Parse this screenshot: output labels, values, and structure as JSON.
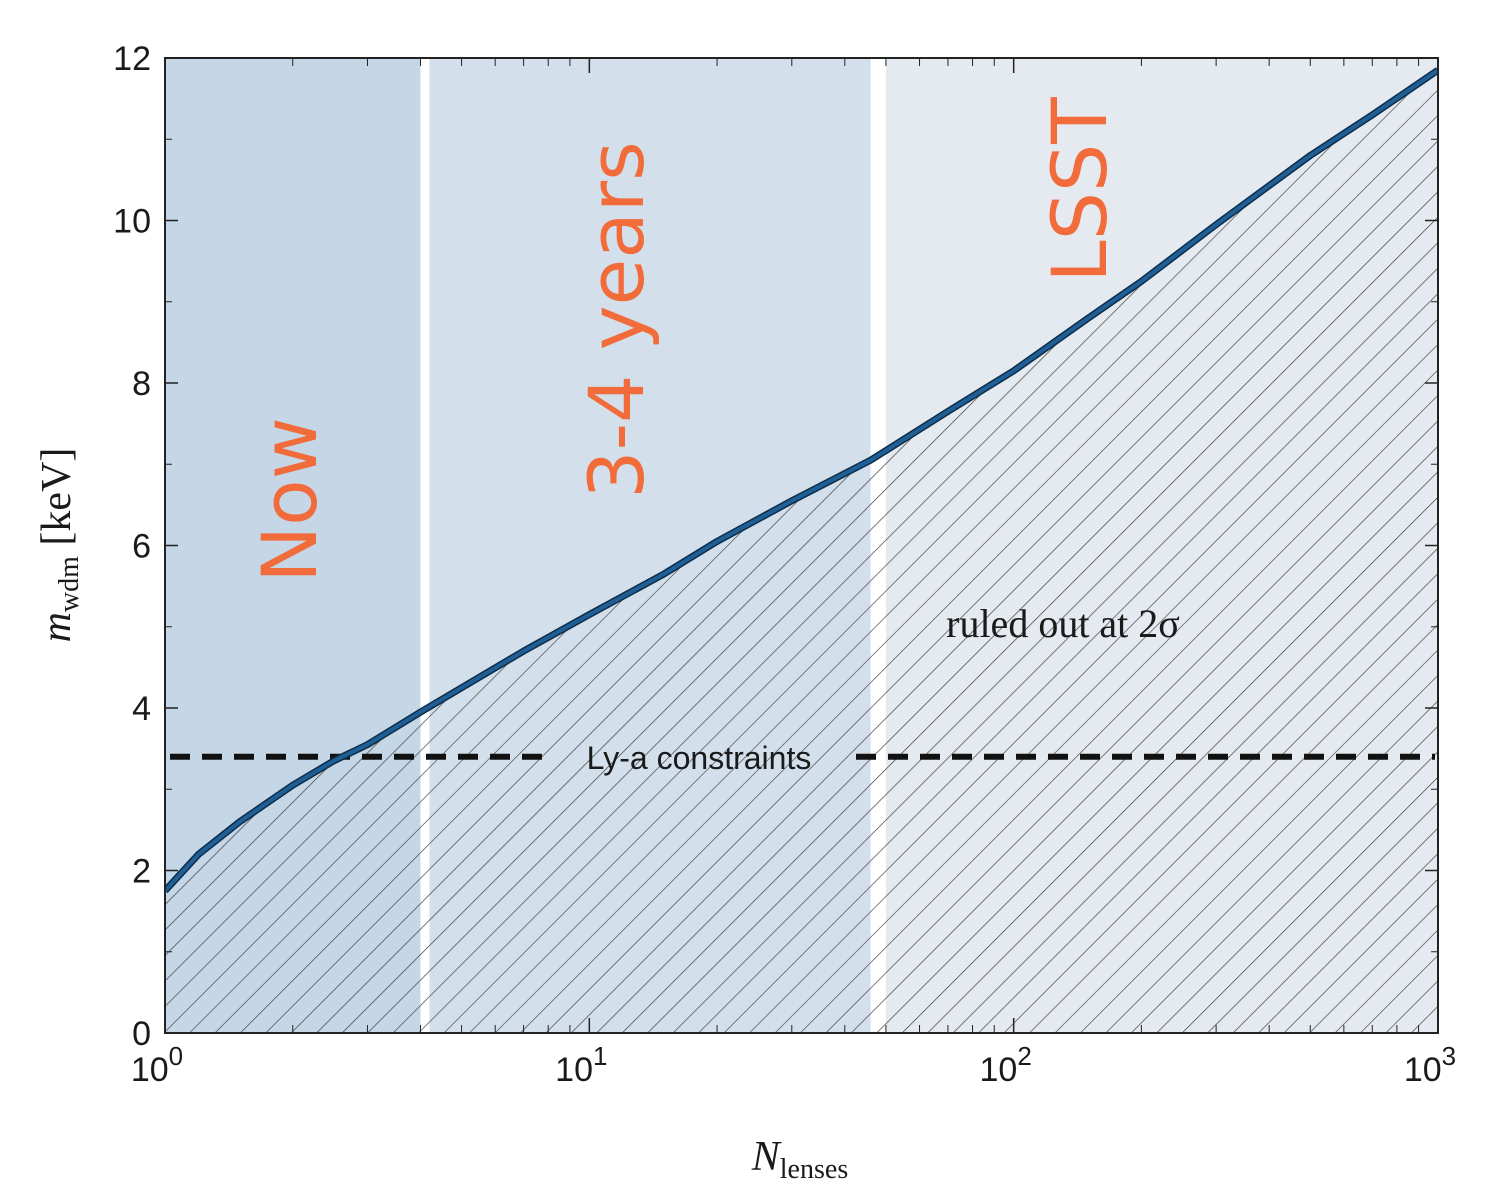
{
  "chart_data": {
    "type": "line",
    "x_scale": "log",
    "xlim": [
      1,
      1000
    ],
    "ylim": [
      0,
      12
    ],
    "xlabel": "N",
    "xlabel_sub": "lenses",
    "ylabel": "m",
    "ylabel_sub": "wdm",
    "ylabel_unit": "[keV]",
    "x_ticks": [
      {
        "value": 1,
        "base": "10",
        "exp": "0"
      },
      {
        "value": 10,
        "base": "10",
        "exp": "1"
      },
      {
        "value": 100,
        "base": "10",
        "exp": "2"
      },
      {
        "value": 1000,
        "base": "10",
        "exp": "3"
      }
    ],
    "y_ticks": [
      {
        "value": 0,
        "label": "0"
      },
      {
        "value": 2,
        "label": "2"
      },
      {
        "value": 4,
        "label": "4"
      },
      {
        "value": 6,
        "label": "6"
      },
      {
        "value": 8,
        "label": "8"
      },
      {
        "value": 10,
        "label": "10"
      },
      {
        "value": 12,
        "label": "12"
      }
    ],
    "series": [
      {
        "color": "#1f5f95",
        "x": [
          1,
          1.2,
          1.5,
          2,
          2.5,
          3,
          4,
          5,
          7,
          10,
          15,
          20,
          30,
          46,
          70,
          100,
          150,
          200,
          300,
          500,
          700,
          1000
        ],
        "y": [
          1.75,
          2.2,
          2.6,
          3.05,
          3.35,
          3.55,
          3.95,
          4.25,
          4.7,
          5.15,
          5.65,
          6.05,
          6.55,
          7.05,
          7.65,
          8.15,
          8.8,
          9.25,
          9.95,
          10.8,
          11.3,
          11.85
        ]
      }
    ],
    "hline": {
      "y": 3.4,
      "label": "Ly-a constraints",
      "style": "dashed",
      "color": "#111111"
    },
    "shaded_bands": [
      {
        "label": "Now",
        "x_range": [
          1,
          4
        ],
        "color": "#c5d6e6"
      },
      {
        "label": "3-4 years",
        "x_range": [
          4.2,
          46
        ],
        "color": "#d3e0ec"
      },
      {
        "label": "LSST",
        "x_range": [
          50,
          1000
        ],
        "color": "#e5eaf0"
      }
    ],
    "hatched_region": {
      "label": "ruled out at 2σ",
      "below_series": true
    },
    "annotation_color": "#f26b3a"
  }
}
